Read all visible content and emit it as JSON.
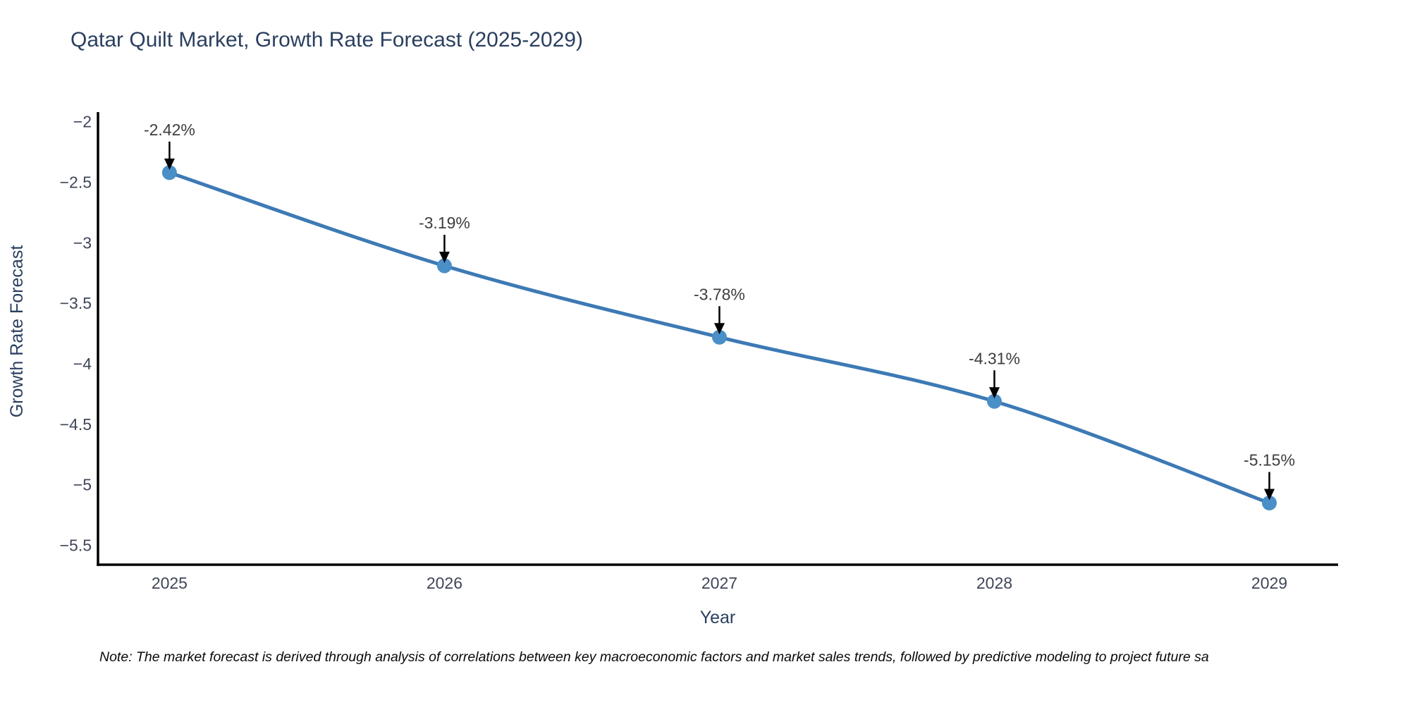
{
  "chart_data": {
    "type": "line",
    "title": "Qatar Quilt Market, Growth Rate Forecast (2025-2029)",
    "xlabel": "Year",
    "ylabel": "Growth Rate Forecast",
    "x": [
      2025,
      2026,
      2027,
      2028,
      2029
    ],
    "values": [
      -2.42,
      -3.19,
      -3.78,
      -4.31,
      -5.15
    ],
    "point_labels": [
      "-2.42%",
      "-3.19%",
      "-3.78%",
      "-4.31%",
      "-5.15%"
    ],
    "x_tick_labels": [
      "2025",
      "2026",
      "2027",
      "2028",
      "2029"
    ],
    "y_ticks": [
      -2,
      -2.5,
      -3,
      -3.5,
      -4,
      -4.5,
      -5,
      -5.5
    ],
    "y_tick_labels": [
      "−2",
      "−2.5",
      "−3",
      "−3.5",
      "−4",
      "−4.5",
      "−5",
      "−5.5"
    ],
    "xlim": [
      2024.74,
      2029.25
    ],
    "ylim": [
      -5.66,
      -1.92
    ],
    "grid": false,
    "legend": false,
    "line_shape": "spline",
    "colors": {
      "line": "#3d7ab5",
      "marker": "#4a8fc7",
      "axis": "#000000",
      "arrow": "#000000",
      "background": "#ffffff"
    }
  },
  "note": "Note: The market forecast is derived through analysis of correlations between key macroeconomic factors and market sales trends, followed by predictive modeling to project future sa"
}
